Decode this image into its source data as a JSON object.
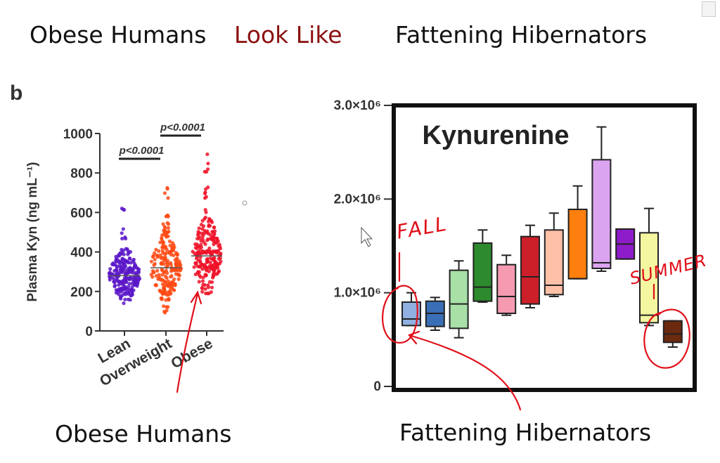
{
  "slide": {
    "title_left": "Obese Humans",
    "title_middle": "Look Like",
    "title_right": "Fattening Hibernators",
    "caption_left": "Obese Humans",
    "caption_right": "Fattening Hibernators",
    "accent_color": "#8b1010",
    "annotation_color": "#e0101a"
  },
  "annotations": {
    "fall_label": "FALL",
    "summer_label": "SUMMER"
  },
  "chart_data": [
    {
      "type": "scatter",
      "panel_label": "b",
      "ylabel": "Plasma Kyn (ng mL⁻¹)",
      "ylim": [
        0,
        1000
      ],
      "yticks": [
        "0",
        "200",
        "400",
        "600",
        "800",
        "1000"
      ],
      "categories": [
        "Lean",
        "Overweight",
        "Obese"
      ],
      "series": [
        {
          "category": "Lean",
          "color": "#5a16c8",
          "median": 280,
          "min": 140,
          "max": 640
        },
        {
          "category": "Overweight",
          "color": "#ff4a14",
          "median": 320,
          "min": 90,
          "max": 730
        },
        {
          "category": "Obese",
          "color": "#f01228",
          "median": 380,
          "min": 190,
          "max": 930
        }
      ],
      "significance": [
        {
          "label": "p<0.0001",
          "from": "Lean",
          "to": "Overweight"
        },
        {
          "label": "p<0.0001",
          "from": "Overweight",
          "to": "Obese"
        }
      ]
    },
    {
      "type": "box",
      "title": "Kynurenine",
      "ylim": [
        0,
        3000000
      ],
      "ytick_values": [
        0,
        1000000,
        2000000,
        3000000
      ],
      "ytick_labels": [
        "0",
        "1.0×10⁶",
        "2.0×10⁶",
        "3.0×10⁶"
      ],
      "boxes": [
        {
          "color": "#8fb0e0",
          "q1": 650000,
          "median": 720000,
          "q3": 900000,
          "min": 650000,
          "max": 1000000
        },
        {
          "color": "#3a6fb8",
          "q1": 640000,
          "median": 780000,
          "q3": 910000,
          "min": 600000,
          "max": 950000
        },
        {
          "color": "#a8e0a8",
          "q1": 620000,
          "median": 880000,
          "q3": 1240000,
          "min": 520000,
          "max": 1340000
        },
        {
          "color": "#2e8a2e",
          "q1": 910000,
          "median": 1060000,
          "q3": 1530000,
          "min": 900000,
          "max": 1670000
        },
        {
          "color": "#f59ab0",
          "q1": 780000,
          "median": 960000,
          "q3": 1300000,
          "min": 760000,
          "max": 1400000
        },
        {
          "color": "#cc1f2a",
          "q1": 880000,
          "median": 1170000,
          "q3": 1600000,
          "min": 840000,
          "max": 1720000
        },
        {
          "color": "#ffc0a8",
          "q1": 980000,
          "median": 1080000,
          "q3": 1670000,
          "min": 960000,
          "max": 1850000
        },
        {
          "color": "#ff7f0e",
          "q1": 1150000,
          "median": 1150000,
          "q3": 1890000,
          "min": 1150000,
          "max": 2140000
        },
        {
          "color": "#dba4f0",
          "q1": 1260000,
          "median": 1320000,
          "q3": 2420000,
          "min": 1230000,
          "max": 2770000
        },
        {
          "color": "#8e1cc9",
          "q1": 1360000,
          "median": 1520000,
          "q3": 1680000,
          "min": 1360000,
          "max": 1680000
        },
        {
          "color": "#f4f6a0",
          "q1": 680000,
          "median": 760000,
          "q3": 1640000,
          "min": 650000,
          "max": 1900000
        },
        {
          "color": "#6b2a10",
          "q1": 470000,
          "median": 560000,
          "q3": 700000,
          "min": 420000,
          "max": 700000
        }
      ]
    }
  ]
}
